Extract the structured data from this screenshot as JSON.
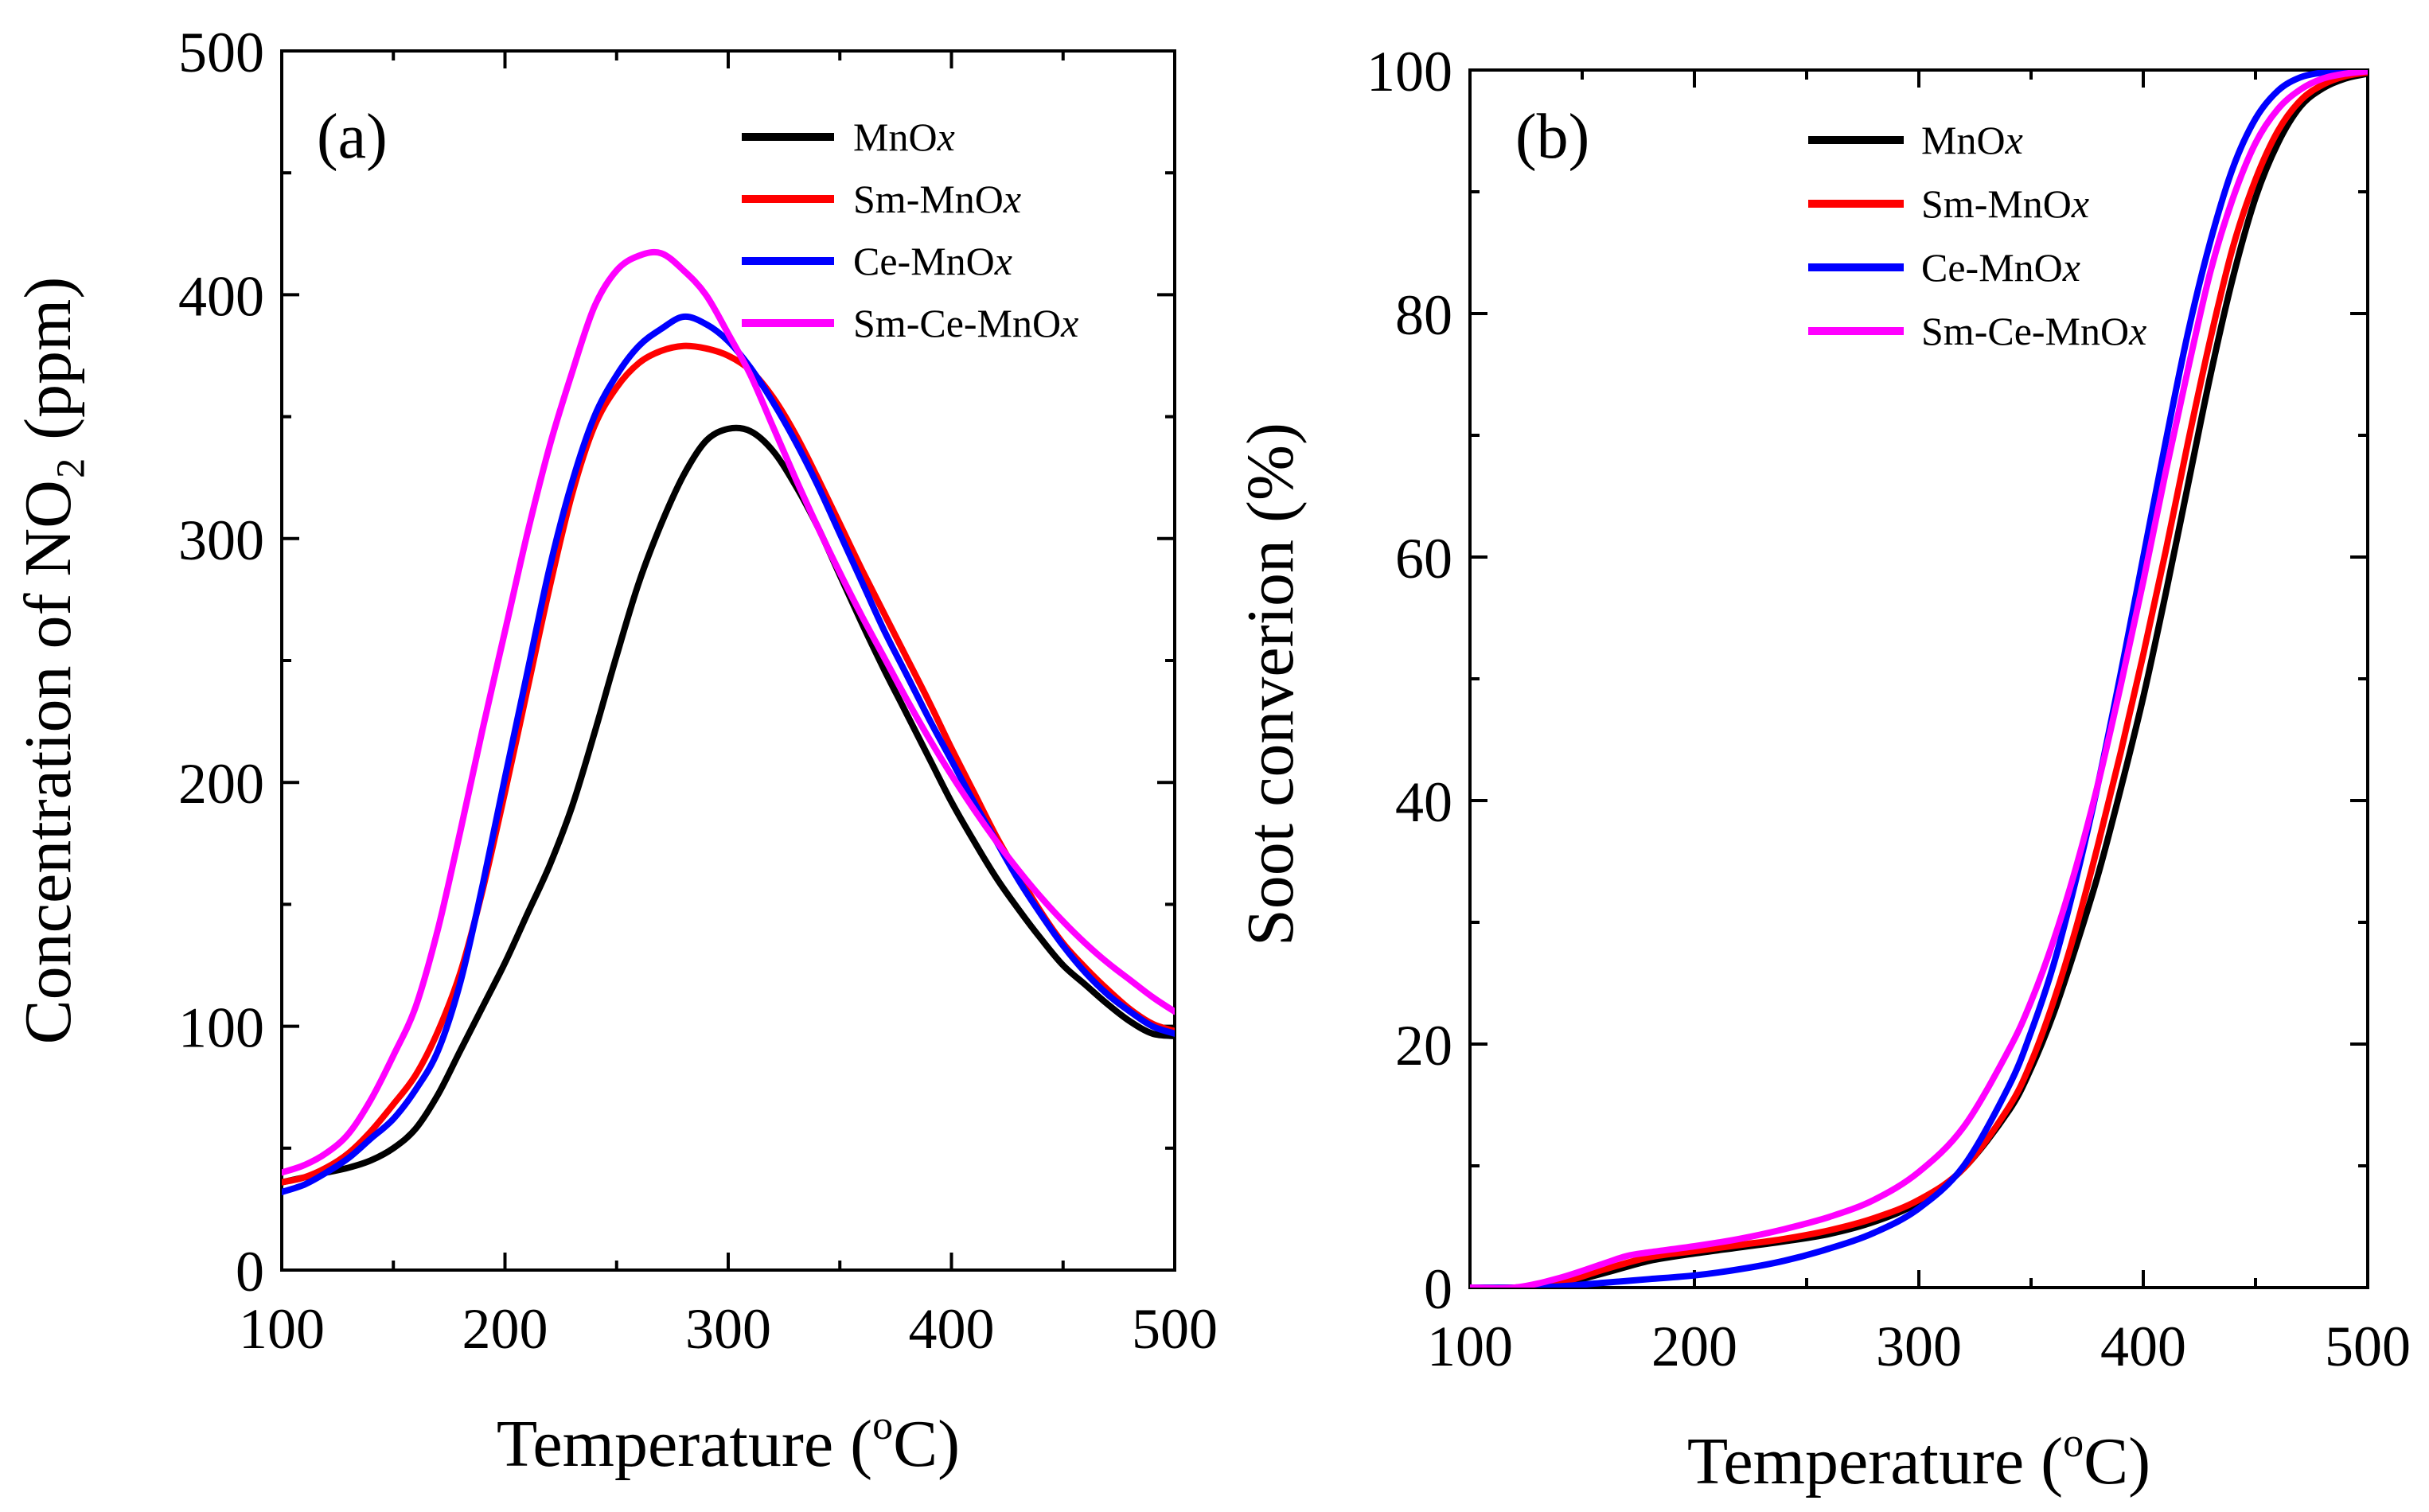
{
  "chart_data": [
    {
      "type": "line",
      "panel_label": "(a)",
      "xlabel_main": "Temperature (",
      "xlabel_sup": "o",
      "xlabel_end": "C)",
      "ylabel": "Concentration of NO₂ (ppm)",
      "xlim": [
        100,
        500
      ],
      "ylim": [
        0,
        500
      ],
      "xticks": [
        100,
        200,
        300,
        400,
        500
      ],
      "yticks": [
        0,
        100,
        200,
        300,
        400,
        500
      ],
      "legend_position": "top-right",
      "series": [
        {
          "name_main": "MnO",
          "name_italic": "x",
          "color": "#000000",
          "x": [
            100,
            110,
            120,
            130,
            140,
            150,
            160,
            170,
            180,
            190,
            200,
            210,
            220,
            230,
            240,
            250,
            260,
            270,
            280,
            290,
            300,
            310,
            320,
            330,
            340,
            350,
            360,
            370,
            380,
            390,
            400,
            410,
            420,
            430,
            440,
            450,
            460,
            470,
            480,
            490,
            500
          ],
          "y": [
            36,
            38,
            40,
            42,
            45,
            50,
            58,
            72,
            90,
            108,
            126,
            146,
            166,
            190,
            220,
            252,
            282,
            306,
            326,
            340,
            345,
            344,
            336,
            322,
            305,
            285,
            265,
            246,
            228,
            210,
            192,
            176,
            161,
            148,
            136,
            125,
            117,
            109,
            102,
            97,
            96
          ]
        },
        {
          "name_main": "Sm-MnO",
          "name_italic": "x",
          "color": "#ff0000",
          "x": [
            100,
            110,
            120,
            130,
            140,
            150,
            160,
            170,
            180,
            190,
            200,
            210,
            220,
            230,
            240,
            250,
            260,
            270,
            280,
            290,
            300,
            310,
            320,
            330,
            340,
            350,
            360,
            370,
            380,
            390,
            400,
            410,
            420,
            430,
            440,
            450,
            460,
            470,
            480,
            490,
            500
          ],
          "y": [
            36,
            38,
            42,
            48,
            57,
            68,
            80,
            98,
            122,
            156,
            196,
            238,
            280,
            318,
            346,
            362,
            372,
            377,
            379,
            378,
            375,
            369,
            358,
            343,
            325,
            306,
            287,
            269,
            251,
            233,
            214,
            196,
            178,
            162,
            147,
            134,
            124,
            115,
            107,
            101,
            98
          ]
        },
        {
          "name_main": "Ce-MnO",
          "name_italic": "x",
          "color": "#0000ff",
          "x": [
            100,
            110,
            120,
            130,
            140,
            150,
            160,
            170,
            180,
            190,
            200,
            210,
            220,
            230,
            240,
            250,
            260,
            270,
            280,
            290,
            300,
            310,
            320,
            330,
            340,
            350,
            360,
            370,
            380,
            390,
            400,
            410,
            420,
            430,
            440,
            450,
            460,
            470,
            480,
            490,
            500
          ],
          "y": [
            32,
            35,
            40,
            46,
            54,
            62,
            74,
            90,
            118,
            158,
            202,
            245,
            288,
            323,
            350,
            367,
            379,
            386,
            391,
            388,
            381,
            370,
            356,
            340,
            322,
            302,
            282,
            262,
            244,
            226,
            209,
            192,
            176,
            160,
            146,
            133,
            122,
            113,
            106,
            100,
            97
          ]
        },
        {
          "name_main": "Sm-Ce-MnO",
          "name_italic": "x",
          "color": "#ff00ff",
          "x": [
            100,
            110,
            120,
            130,
            140,
            150,
            160,
            170,
            180,
            190,
            200,
            210,
            220,
            230,
            240,
            250,
            260,
            270,
            280,
            290,
            300,
            310,
            320,
            330,
            340,
            350,
            360,
            370,
            380,
            390,
            400,
            410,
            420,
            430,
            440,
            450,
            460,
            470,
            480,
            490,
            500
          ],
          "y": [
            40,
            43,
            48,
            56,
            70,
            88,
            108,
            140,
            180,
            222,
            262,
            302,
            338,
            368,
            395,
            410,
            416,
            417,
            410,
            400,
            384,
            367,
            346,
            325,
            305,
            286,
            268,
            251,
            234,
            218,
            203,
            189,
            176,
            164,
            153,
            143,
            134,
            126,
            119,
            112,
            106
          ]
        }
      ]
    },
    {
      "type": "line",
      "panel_label": "(b)",
      "xlabel_main": "Temperature (",
      "xlabel_sup": "o",
      "xlabel_end": "C)",
      "ylabel": "Soot converion (%)",
      "xlim": [
        100,
        500
      ],
      "ylim": [
        0,
        100
      ],
      "xticks": [
        100,
        200,
        300,
        400,
        500
      ],
      "yticks": [
        0,
        20,
        40,
        60,
        80,
        100
      ],
      "legend_position": "top-right",
      "series": [
        {
          "name_main": "MnO",
          "name_italic": "x",
          "color": "#000000",
          "x": [
            100,
            120,
            140,
            160,
            180,
            200,
            220,
            240,
            260,
            280,
            300,
            320,
            340,
            350,
            360,
            370,
            380,
            390,
            400,
            410,
            420,
            430,
            440,
            450,
            460,
            470,
            480,
            490,
            500
          ],
          "y": [
            0,
            0,
            0.3,
            1.2,
            2.2,
            2.8,
            3.3,
            3.8,
            4.4,
            5.4,
            7.0,
            9.8,
            14.5,
            18,
            22.5,
            28,
            34,
            41,
            48.5,
            57,
            66,
            75,
            83,
            89.5,
            94,
            97,
            98.5,
            99.3,
            99.7
          ]
        },
        {
          "name_main": "Sm-MnO",
          "name_italic": "x",
          "color": "#ff0000",
          "x": [
            100,
            120,
            140,
            160,
            180,
            200,
            220,
            240,
            260,
            280,
            300,
            320,
            340,
            350,
            360,
            370,
            380,
            390,
            400,
            410,
            420,
            430,
            440,
            450,
            460,
            470,
            480,
            490,
            500
          ],
          "y": [
            0,
            0,
            0.4,
            1.5,
            2.5,
            3.0,
            3.5,
            4.0,
            4.7,
            5.7,
            7.2,
            9.8,
            14.8,
            18.5,
            23.5,
            29.5,
            36.5,
            44,
            52,
            60.5,
            69.5,
            78,
            85.5,
            91,
            95,
            97.5,
            98.8,
            99.5,
            99.8
          ]
        },
        {
          "name_main": "Ce-MnO",
          "name_italic": "x",
          "color": "#0000ff",
          "x": [
            100,
            120,
            140,
            160,
            180,
            200,
            220,
            240,
            260,
            280,
            300,
            320,
            340,
            350,
            360,
            370,
            380,
            390,
            400,
            410,
            420,
            430,
            440,
            450,
            460,
            470,
            480,
            490,
            500
          ],
          "y": [
            0,
            0,
            0.1,
            0.4,
            0.7,
            1.0,
            1.5,
            2.2,
            3.2,
            4.5,
            6.5,
            10,
            16.5,
            21,
            26.5,
            33.5,
            41.5,
            50.5,
            60,
            69.5,
            78.5,
            86,
            92,
            96,
            98.3,
            99.4,
            99.8,
            100,
            100
          ]
        },
        {
          "name_main": "Sm-Ce-MnO",
          "name_italic": "x",
          "color": "#ff00ff",
          "x": [
            100,
            120,
            140,
            160,
            170,
            180,
            200,
            220,
            240,
            260,
            280,
            300,
            320,
            340,
            350,
            360,
            370,
            380,
            390,
            400,
            410,
            420,
            430,
            440,
            450,
            460,
            470,
            480,
            490,
            500
          ],
          "y": [
            0,
            0,
            0.8,
            2.0,
            2.6,
            2.9,
            3.4,
            4.0,
            4.8,
            5.8,
            7.2,
            9.5,
            13.2,
            19.5,
            23.5,
            28.5,
            34.5,
            41.5,
            49.5,
            58,
            67,
            75.5,
            83.5,
            89.5,
            94,
            96.8,
            98.4,
            99.3,
            99.7,
            99.9
          ]
        }
      ]
    }
  ]
}
